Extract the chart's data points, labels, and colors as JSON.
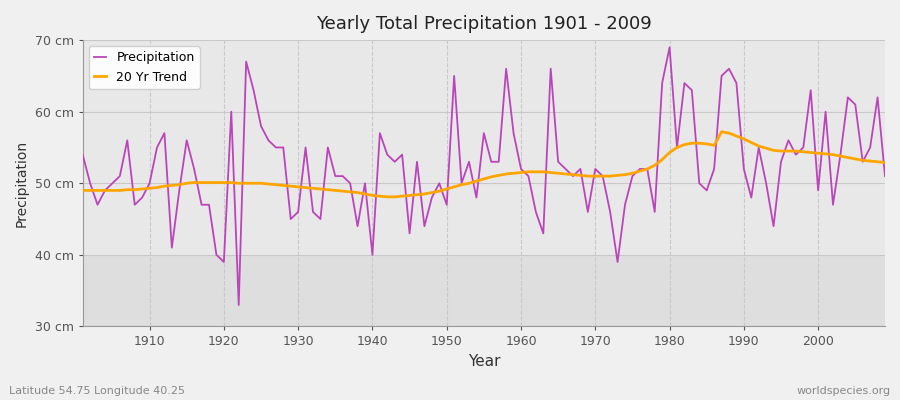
{
  "title": "Yearly Total Precipitation 1901 - 2009",
  "xlabel": "Year",
  "ylabel": "Precipitation",
  "lat_lon_label": "Latitude 54.75 Longitude 40.25",
  "watermark": "worldspecies.org",
  "ylim": [
    30,
    70
  ],
  "yticks": [
    30,
    40,
    50,
    60,
    70
  ],
  "ytick_labels": [
    "30 cm",
    "40 cm",
    "50 cm",
    "60 cm",
    "70 cm"
  ],
  "xlim": [
    1901,
    2009
  ],
  "xticks": [
    1910,
    1920,
    1930,
    1940,
    1950,
    1960,
    1970,
    1980,
    1990,
    2000
  ],
  "precip_color": "#BB44BB",
  "trend_color": "#FFA500",
  "bg_color": "#F0F0F0",
  "plot_bg_upper": "#E8E8E8",
  "plot_bg_lower": "#DEDEDE",
  "grid_color": "#C8C8C8",
  "years": [
    1901,
    1902,
    1903,
    1904,
    1905,
    1906,
    1907,
    1908,
    1909,
    1910,
    1911,
    1912,
    1913,
    1914,
    1915,
    1916,
    1917,
    1918,
    1919,
    1920,
    1921,
    1922,
    1923,
    1924,
    1925,
    1926,
    1927,
    1928,
    1929,
    1930,
    1931,
    1932,
    1933,
    1934,
    1935,
    1936,
    1937,
    1938,
    1939,
    1940,
    1941,
    1942,
    1943,
    1944,
    1945,
    1946,
    1947,
    1948,
    1949,
    1950,
    1951,
    1952,
    1953,
    1954,
    1955,
    1956,
    1957,
    1958,
    1959,
    1960,
    1961,
    1962,
    1963,
    1964,
    1965,
    1966,
    1967,
    1968,
    1969,
    1970,
    1971,
    1972,
    1973,
    1974,
    1975,
    1976,
    1977,
    1978,
    1979,
    1980,
    1981,
    1982,
    1983,
    1984,
    1985,
    1986,
    1987,
    1988,
    1989,
    1990,
    1991,
    1992,
    1993,
    1994,
    1995,
    1996,
    1997,
    1998,
    1999,
    2000,
    2001,
    2002,
    2003,
    2004,
    2005,
    2006,
    2007,
    2008,
    2009
  ],
  "precipitation": [
    54,
    50,
    47,
    49,
    50,
    51,
    56,
    47,
    48,
    50,
    55,
    57,
    41,
    49,
    56,
    52,
    47,
    47,
    40,
    39,
    60,
    33,
    67,
    63,
    58,
    56,
    55,
    55,
    45,
    46,
    55,
    46,
    45,
    55,
    51,
    51,
    50,
    44,
    50,
    40,
    57,
    54,
    53,
    54,
    43,
    53,
    44,
    48,
    50,
    47,
    65,
    50,
    53,
    48,
    57,
    53,
    53,
    66,
    57,
    52,
    51,
    46,
    43,
    66,
    53,
    52,
    51,
    52,
    46,
    52,
    51,
    46,
    39,
    47,
    51,
    52,
    52,
    46,
    64,
    69,
    55,
    64,
    63,
    50,
    49,
    52,
    65,
    66,
    64,
    52,
    48,
    55,
    50,
    44,
    53,
    56,
    54,
    55,
    63,
    49,
    60,
    47,
    54,
    62,
    61,
    53,
    55,
    62,
    51
  ],
  "trend": [
    49.0,
    49.0,
    49.0,
    49.0,
    49.0,
    49.0,
    49.1,
    49.1,
    49.2,
    49.3,
    49.4,
    49.6,
    49.7,
    49.8,
    50.0,
    50.1,
    50.1,
    50.1,
    50.1,
    50.1,
    50.1,
    50.0,
    50.0,
    50.0,
    50.0,
    49.9,
    49.8,
    49.7,
    49.6,
    49.5,
    49.4,
    49.3,
    49.2,
    49.1,
    49.0,
    48.9,
    48.8,
    48.7,
    48.5,
    48.3,
    48.2,
    48.1,
    48.1,
    48.2,
    48.3,
    48.4,
    48.5,
    48.7,
    48.9,
    49.2,
    49.5,
    49.8,
    50.0,
    50.3,
    50.6,
    50.9,
    51.1,
    51.3,
    51.4,
    51.5,
    51.6,
    51.6,
    51.6,
    51.5,
    51.4,
    51.3,
    51.2,
    51.1,
    51.0,
    51.0,
    51.0,
    51.0,
    51.1,
    51.2,
    51.4,
    51.7,
    52.0,
    52.5,
    53.3,
    54.3,
    55.0,
    55.4,
    55.6,
    55.6,
    55.5,
    55.3,
    57.2,
    57.0,
    56.6,
    56.2,
    55.7,
    55.2,
    54.9,
    54.6,
    54.5,
    54.5,
    54.5,
    54.4,
    54.3,
    54.2,
    54.1,
    54.0,
    53.8,
    53.6,
    53.4,
    53.2,
    53.1,
    53.0,
    52.9
  ]
}
